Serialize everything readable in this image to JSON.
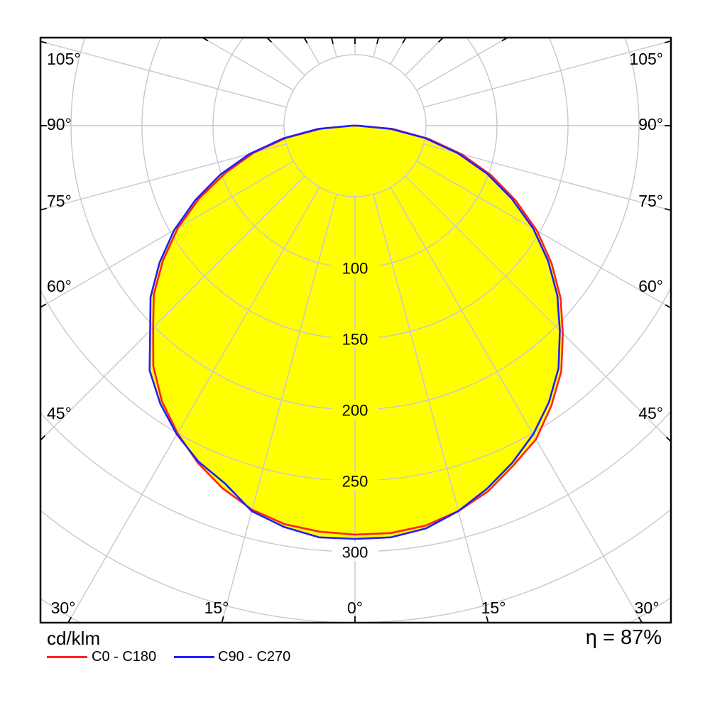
{
  "units_label": "cd/klm",
  "efficiency_label": "η = 87%",
  "legend": [
    {
      "label": "C0 - C180",
      "color": "#ff2121"
    },
    {
      "label": "C90 - C270",
      "color": "#1f1fff"
    }
  ],
  "colors": {
    "background": "#ffffff",
    "fill": "#ffff00",
    "grid": "#c5c8d2",
    "frame": "#000000",
    "text": "#000000"
  },
  "chart_data": {
    "type": "polar-intensity",
    "title": "",
    "radial_axis": {
      "unit": "cd/klm",
      "tick_labels": [
        "100",
        "150",
        "200",
        "250",
        "300"
      ],
      "ticks": [
        100,
        150,
        200,
        250,
        300
      ],
      "grid_step": 50,
      "grid_max": 400
    },
    "angle_axis": {
      "step_deg": 15,
      "left_labels": [
        "105°",
        "90°",
        "75°",
        "60°",
        "45°"
      ],
      "right_labels": [
        "105°",
        "90°",
        "75°",
        "60°",
        "45°"
      ],
      "bottom_labels": [
        "30°",
        "15°",
        "0°",
        "15°",
        "30°"
      ]
    },
    "series": [
      {
        "name": "C0 - C180",
        "color": "#ff2121",
        "angles_deg": [
          -90,
          -85,
          -80,
          -75,
          -70,
          -65,
          -60,
          -55,
          -50,
          -45,
          -40,
          -35,
          -30,
          -25,
          -20,
          -15,
          -10,
          -5,
          0,
          5,
          10,
          15,
          20,
          25,
          30,
          35,
          40,
          45,
          50,
          55,
          60,
          65,
          70,
          75,
          80,
          85,
          90
        ],
        "values": [
          2,
          24,
          49,
          74,
          97,
          121,
          144,
          165,
          185,
          201,
          221,
          237,
          250,
          262,
          272,
          280,
          285,
          287,
          288,
          288,
          286,
          281,
          274,
          264,
          255,
          241,
          226,
          207,
          189,
          169,
          148,
          125,
          102,
          78,
          52,
          27,
          2
        ]
      },
      {
        "name": "C90 - C270",
        "color": "#1f1fff",
        "angles_deg": [
          -90,
          -85,
          -80,
          -75,
          -70,
          -65,
          -60,
          -55,
          -50,
          -45,
          -40,
          -35,
          -30,
          -25,
          -20,
          -15,
          -10,
          -5,
          0,
          5,
          10,
          15,
          20,
          25,
          30,
          35,
          40,
          45,
          50,
          55,
          60,
          65,
          70,
          75,
          80,
          85,
          90
        ],
        "values": [
          2,
          26,
          51,
          77,
          101,
          124,
          147,
          168,
          188,
          204,
          225,
          239,
          251,
          261,
          268,
          281,
          287,
          291,
          291,
          291,
          288,
          281,
          272,
          262,
          251,
          238,
          223,
          204,
          186,
          166,
          145,
          122,
          99,
          75,
          50,
          25,
          2
        ]
      }
    ],
    "efficiency_percent": 87
  }
}
